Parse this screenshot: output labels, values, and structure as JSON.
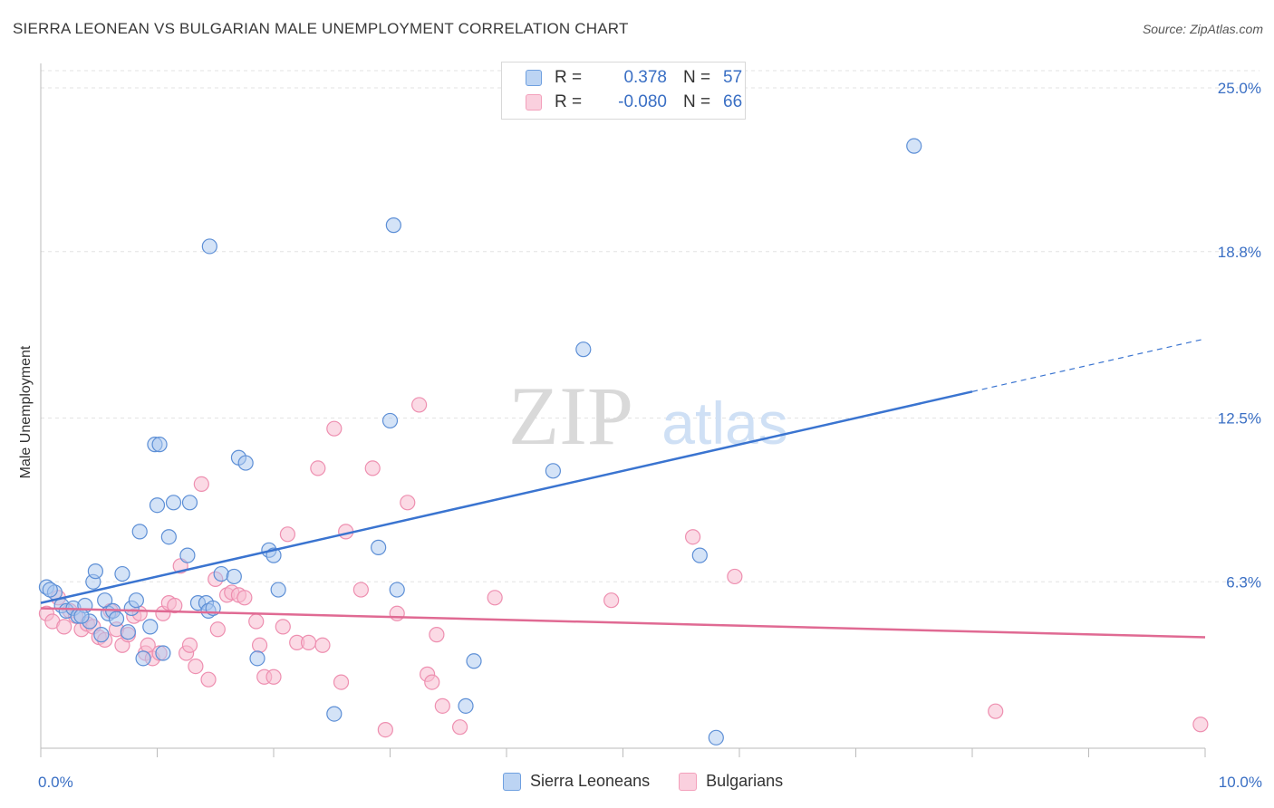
{
  "header": {
    "title": "SIERRA LEONEAN VS BULGARIAN MALE UNEMPLOYMENT CORRELATION CHART",
    "source": "Source: ZipAtlas.com"
  },
  "watermark": {
    "zip": "ZIP",
    "atlas": "atlas"
  },
  "legend": {
    "rows": [
      {
        "r_label": "R =",
        "r_value": "0.378",
        "n_label": "N =",
        "n_value": "57",
        "color": "#6fa0e0"
      },
      {
        "r_label": "R =",
        "r_value": "-0.080",
        "n_label": "N =",
        "n_value": "66",
        "color": "#f3a0bb"
      }
    ]
  },
  "bottom_legend": {
    "series1": "Sierra Leoneans",
    "series2": "Bulgarians"
  },
  "chart_data": {
    "type": "scatter",
    "title": "SIERRA LEONEAN VS BULGARIAN MALE UNEMPLOYMENT CORRELATION CHART",
    "ylabel": "Male Unemployment",
    "xlabel": "",
    "x_tick_labels": [
      "0.0%",
      "10.0%"
    ],
    "y_tick_labels": [
      "6.3%",
      "12.5%",
      "18.8%",
      "25.0%"
    ],
    "y_ticks": [
      6.3,
      12.5,
      18.8,
      25.0
    ],
    "xlim": [
      0,
      10
    ],
    "ylim": [
      0,
      25
    ],
    "grid": true,
    "colors": {
      "blue": "#3a74d0",
      "pink": "#e06a93",
      "blue_fill": "#a9c8f0",
      "pink_fill": "#f7bcd0"
    },
    "series": [
      {
        "name": "Sierra Leoneans",
        "trend": {
          "x0": 0,
          "y0": 5.5,
          "x1": 8.0,
          "y1": 13.5,
          "dash_to_x": 10.0,
          "dash_to_y": 15.5
        },
        "points": [
          [
            0.05,
            6.1
          ],
          [
            0.12,
            5.9
          ],
          [
            0.18,
            5.4
          ],
          [
            0.22,
            5.2
          ],
          [
            0.28,
            5.3
          ],
          [
            0.32,
            5.0
          ],
          [
            0.38,
            5.4
          ],
          [
            0.42,
            4.8
          ],
          [
            0.45,
            6.3
          ],
          [
            0.47,
            6.7
          ],
          [
            0.52,
            4.3
          ],
          [
            0.55,
            5.6
          ],
          [
            0.58,
            5.1
          ],
          [
            0.62,
            5.2
          ],
          [
            0.65,
            4.9
          ],
          [
            0.7,
            6.6
          ],
          [
            0.75,
            4.4
          ],
          [
            0.78,
            5.3
          ],
          [
            0.82,
            5.6
          ],
          [
            0.85,
            8.2
          ],
          [
            0.88,
            3.4
          ],
          [
            0.94,
            4.6
          ],
          [
            0.98,
            11.5
          ],
          [
            1.0,
            9.2
          ],
          [
            1.05,
            3.6
          ],
          [
            1.1,
            8.0
          ],
          [
            1.14,
            9.3
          ],
          [
            1.28,
            9.3
          ],
          [
            1.26,
            7.3
          ],
          [
            1.35,
            5.5
          ],
          [
            1.42,
            5.5
          ],
          [
            1.44,
            5.2
          ],
          [
            1.45,
            19.0
          ],
          [
            1.48,
            5.3
          ],
          [
            1.55,
            6.6
          ],
          [
            1.66,
            6.5
          ],
          [
            1.7,
            11.0
          ],
          [
            1.76,
            10.8
          ],
          [
            1.86,
            3.4
          ],
          [
            1.96,
            7.5
          ],
          [
            2.0,
            7.3
          ],
          [
            2.04,
            6.0
          ],
          [
            2.52,
            1.3
          ],
          [
            3.0,
            12.4
          ],
          [
            3.03,
            19.8
          ],
          [
            3.06,
            6.0
          ],
          [
            2.9,
            7.6
          ],
          [
            3.72,
            3.3
          ],
          [
            3.65,
            1.6
          ],
          [
            4.4,
            10.5
          ],
          [
            4.66,
            15.1
          ],
          [
            5.66,
            7.3
          ],
          [
            5.8,
            0.4
          ],
          [
            7.5,
            22.8
          ],
          [
            0.08,
            6.0
          ],
          [
            0.35,
            5.0
          ],
          [
            1.02,
            11.5
          ]
        ]
      },
      {
        "name": "Bulgarians",
        "trend": {
          "x0": 0,
          "y0": 5.3,
          "x1": 10.0,
          "y1": 4.2
        },
        "points": [
          [
            0.05,
            5.1
          ],
          [
            0.1,
            4.8
          ],
          [
            0.15,
            5.7
          ],
          [
            0.2,
            4.6
          ],
          [
            0.25,
            5.2
          ],
          [
            0.3,
            5.0
          ],
          [
            0.35,
            4.5
          ],
          [
            0.4,
            4.7
          ],
          [
            0.45,
            4.6
          ],
          [
            0.5,
            4.2
          ],
          [
            0.55,
            4.1
          ],
          [
            0.6,
            5.2
          ],
          [
            0.65,
            4.5
          ],
          [
            0.7,
            3.9
          ],
          [
            0.75,
            4.3
          ],
          [
            0.8,
            5.0
          ],
          [
            0.85,
            5.1
          ],
          [
            0.9,
            3.6
          ],
          [
            0.92,
            3.9
          ],
          [
            0.96,
            3.4
          ],
          [
            1.02,
            3.6
          ],
          [
            1.05,
            5.1
          ],
          [
            1.1,
            5.5
          ],
          [
            1.15,
            5.4
          ],
          [
            1.2,
            6.9
          ],
          [
            1.25,
            3.6
          ],
          [
            1.28,
            3.9
          ],
          [
            1.33,
            3.1
          ],
          [
            1.38,
            10.0
          ],
          [
            1.44,
            2.6
          ],
          [
            1.5,
            6.4
          ],
          [
            1.52,
            4.5
          ],
          [
            1.6,
            5.8
          ],
          [
            1.64,
            5.9
          ],
          [
            1.7,
            5.8
          ],
          [
            1.75,
            5.7
          ],
          [
            1.85,
            4.8
          ],
          [
            1.88,
            3.9
          ],
          [
            1.92,
            2.7
          ],
          [
            2.0,
            2.7
          ],
          [
            2.08,
            4.6
          ],
          [
            2.12,
            8.1
          ],
          [
            2.2,
            4.0
          ],
          [
            2.3,
            4.0
          ],
          [
            2.38,
            10.6
          ],
          [
            2.42,
            3.9
          ],
          [
            2.52,
            12.1
          ],
          [
            2.58,
            2.5
          ],
          [
            2.62,
            8.2
          ],
          [
            2.75,
            6.0
          ],
          [
            2.85,
            10.6
          ],
          [
            2.96,
            0.7
          ],
          [
            3.06,
            5.1
          ],
          [
            3.15,
            9.3
          ],
          [
            3.25,
            13.0
          ],
          [
            3.32,
            2.8
          ],
          [
            3.4,
            4.3
          ],
          [
            3.45,
            1.6
          ],
          [
            3.6,
            0.8
          ],
          [
            3.9,
            5.7
          ],
          [
            4.9,
            5.6
          ],
          [
            5.6,
            8.0
          ],
          [
            5.96,
            6.5
          ],
          [
            8.2,
            1.4
          ],
          [
            9.96,
            0.9
          ],
          [
            3.36,
            2.5
          ]
        ]
      }
    ]
  }
}
